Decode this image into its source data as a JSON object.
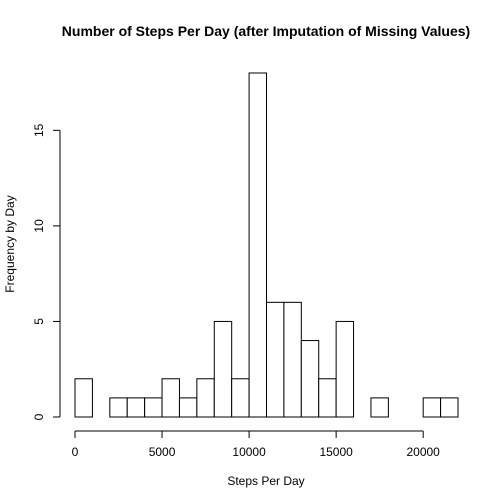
{
  "chart_data": {
    "type": "bar",
    "title": "Number of Steps Per Day (after Imputation of Missing Values)",
    "xlabel": "Steps Per Day",
    "ylabel": "Frequency by Day",
    "bin_width": 1000,
    "bins_start": [
      0,
      1000,
      2000,
      3000,
      4000,
      5000,
      6000,
      7000,
      8000,
      9000,
      10000,
      11000,
      12000,
      13000,
      14000,
      15000,
      16000,
      17000,
      18000,
      19000,
      20000,
      21000
    ],
    "values": [
      2,
      0,
      1,
      1,
      1,
      2,
      1,
      2,
      5,
      2,
      18,
      6,
      6,
      4,
      2,
      5,
      0,
      1,
      0,
      0,
      1,
      1
    ],
    "xlim": [
      0,
      22000
    ],
    "ylim": [
      0,
      18
    ],
    "x_ticks": [
      0,
      5000,
      10000,
      15000,
      20000
    ],
    "y_ticks": [
      0,
      5,
      10,
      15
    ],
    "grid": false
  }
}
